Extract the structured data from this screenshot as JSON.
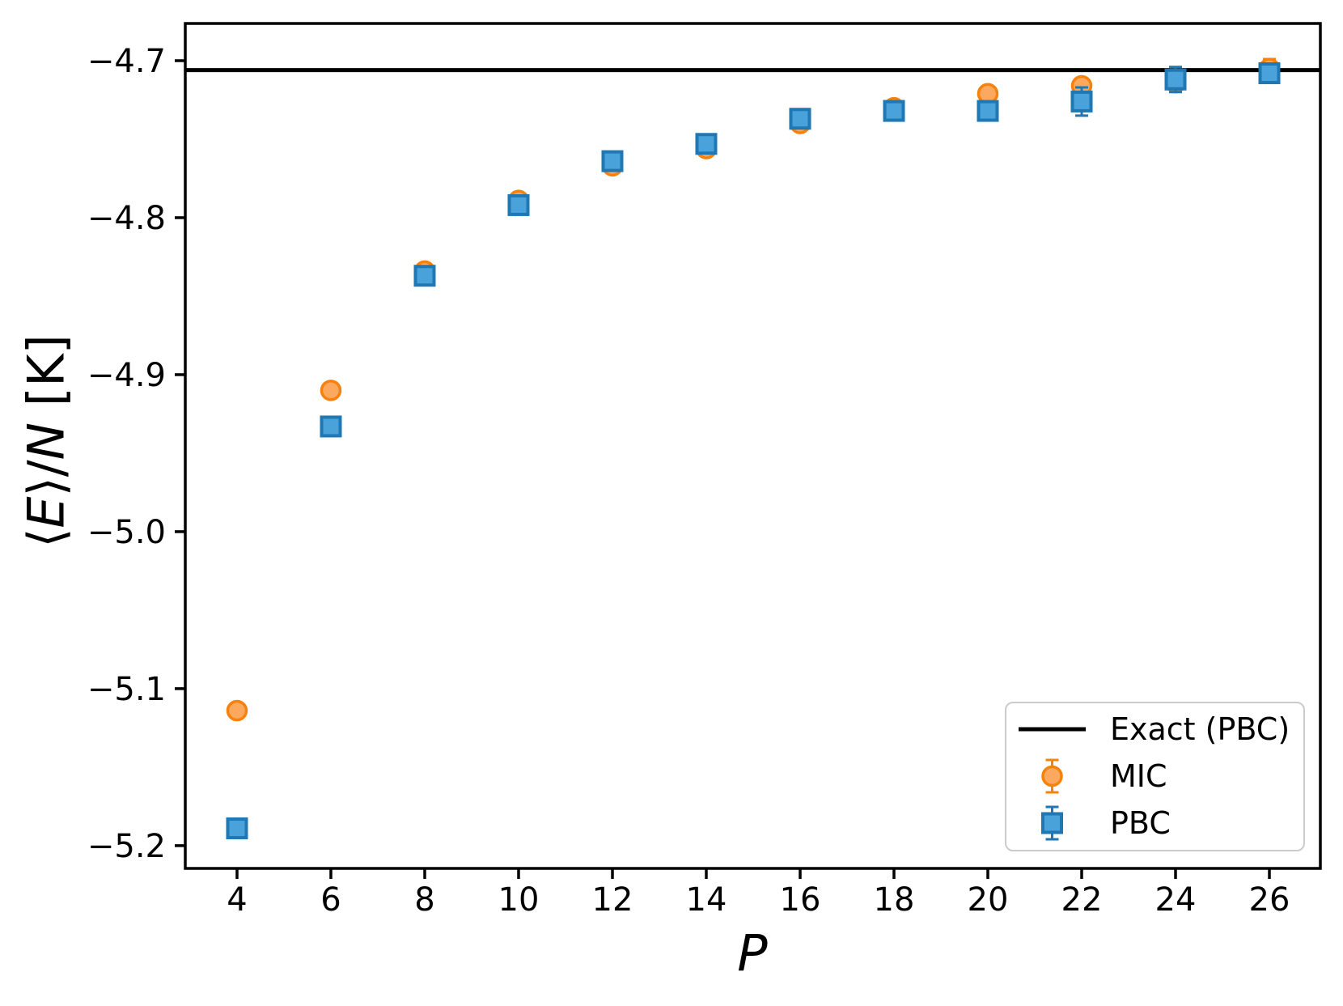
{
  "figure": {
    "background": "#ffffff",
    "axis_color": "#000000",
    "ylabel_parts": [
      {
        "t": "⟨",
        "i": false
      },
      {
        "t": "E",
        "i": true
      },
      {
        "t": "⟩/",
        "i": false
      },
      {
        "t": "N",
        "i": true
      },
      {
        "t": " [K]",
        "i": false
      }
    ]
  },
  "chart_data": {
    "type": "scatter",
    "title": "",
    "xlabel": "P",
    "ylabel": "⟨E⟩/N [K]",
    "grid": false,
    "legend_position": "lower right",
    "xlim": [
      2.897,
      27.086
    ],
    "ylim": [
      -5.2145,
      -4.6763
    ],
    "xticks": {
      "values": [
        4,
        6,
        8,
        10,
        12,
        14,
        16,
        18,
        20,
        22,
        24,
        26
      ],
      "labels": [
        "4",
        "6",
        "8",
        "10",
        "12",
        "14",
        "16",
        "18",
        "20",
        "22",
        "24",
        "26"
      ]
    },
    "yticks": {
      "values": [
        -4.7,
        -4.8,
        -4.9,
        -5.0,
        -5.1,
        -5.2
      ],
      "labels": [
        "−4.7",
        "−4.8",
        "−4.9",
        "−5.0",
        "−5.1",
        "−5.2"
      ]
    },
    "exact_line": {
      "label": "Exact (PBC)",
      "value": -4.706,
      "color": "#000000",
      "linewidth": 5
    },
    "x": [
      4,
      6,
      8,
      10,
      12,
      14,
      16,
      18,
      20,
      22,
      24,
      26
    ],
    "series": [
      {
        "name": "MIC",
        "marker": "circle",
        "face_color": "#fca85f",
        "edge_color": "#f5820d",
        "values": [
          -5.114,
          -4.91,
          -4.834,
          -4.789,
          -4.767,
          -4.756,
          -4.74,
          -4.73,
          -4.721,
          -4.716,
          -4.714,
          -4.705
        ],
        "errors": [
          0.004,
          0.004,
          0.004,
          0.004,
          0.004,
          0.004,
          0.004,
          0.004,
          0.004,
          0.004,
          0.004,
          0.006
        ]
      },
      {
        "name": "PBC",
        "marker": "square",
        "face_color": "#4aa2da",
        "edge_color": "#1f77b4",
        "values": [
          -5.189,
          -4.933,
          -4.837,
          -4.792,
          -4.764,
          -4.753,
          -4.737,
          -4.732,
          -4.732,
          -4.726,
          -4.712,
          -4.708
        ],
        "errors": [
          0.004,
          0.004,
          0.004,
          0.004,
          0.004,
          0.004,
          0.004,
          0.004,
          0.004,
          0.009,
          0.008,
          0.004
        ]
      }
    ]
  }
}
